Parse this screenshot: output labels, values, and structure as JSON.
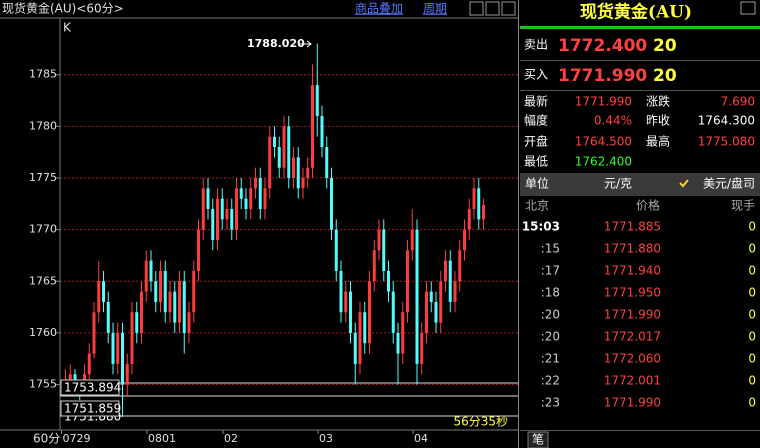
{
  "toolbar": {
    "title": "现货黄金(AU)<60分>",
    "overlay": "商品叠加",
    "period": "周期"
  },
  "chart_data": {
    "type": "candlestick",
    "corner_label": "K",
    "period_label": "60分",
    "countdown": "56分35秒",
    "max_label": "1788.020",
    "low_labels": [
      "1753.894",
      "1751.859"
    ],
    "low_label_hidden": "1751.880",
    "up_color": "#ff3c3c",
    "down_color": "#54fcfc",
    "grid": true,
    "ylim": [
      1750.6,
      1790.3
    ],
    "yticks": [
      1755,
      1760,
      1765,
      1770,
      1775,
      1780,
      1785
    ],
    "categories": [
      "0729",
      null,
      null,
      null,
      null,
      null,
      null,
      null,
      null,
      null,
      null,
      null,
      null,
      null,
      null,
      null,
      null,
      null,
      "0801",
      null,
      null,
      null,
      null,
      null,
      null,
      null,
      null,
      null,
      null,
      null,
      null,
      null,
      null,
      null,
      "02",
      null,
      null,
      null,
      null,
      null,
      null,
      null,
      null,
      null,
      null,
      null,
      null,
      null,
      null,
      null,
      null,
      null,
      null,
      null,
      "03",
      null,
      null,
      null,
      null,
      null,
      null,
      null,
      null,
      null,
      null,
      null,
      null,
      null,
      null,
      null,
      null,
      null,
      null,
      null,
      "04",
      null,
      null,
      null,
      null,
      null,
      null,
      null,
      null,
      null,
      null,
      null,
      null,
      null,
      null
    ],
    "candles": [
      [
        1755,
        1756.5,
        1754,
        1755.5
      ],
      [
        1755.5,
        1757,
        1755,
        1756
      ],
      [
        1756,
        1756.5,
        1754.5,
        1755
      ],
      [
        1755,
        1755.5,
        1753.5,
        1754.5
      ],
      [
        1754.5,
        1757,
        1754,
        1756
      ],
      [
        1756,
        1759,
        1755.5,
        1758
      ],
      [
        1758,
        1763,
        1757.5,
        1762
      ],
      [
        1762,
        1767,
        1761,
        1765
      ],
      [
        1765,
        1766,
        1762,
        1763
      ],
      [
        1763,
        1764,
        1759,
        1760
      ],
      [
        1760,
        1761,
        1756,
        1757
      ],
      [
        1757,
        1761,
        1756,
        1760
      ],
      [
        1760,
        1761,
        1751.859,
        1755
      ],
      [
        1755,
        1758,
        1753.894,
        1757
      ],
      [
        1757,
        1763,
        1756,
        1762
      ],
      [
        1762,
        1763,
        1759,
        1760
      ],
      [
        1760,
        1765,
        1759,
        1764
      ],
      [
        1764,
        1768,
        1763,
        1767
      ],
      [
        1767,
        1768,
        1764,
        1765
      ],
      [
        1765,
        1766,
        1762,
        1763
      ],
      [
        1763,
        1767,
        1762,
        1766
      ],
      [
        1766,
        1767,
        1761,
        1762
      ],
      [
        1762,
        1765,
        1761,
        1764
      ],
      [
        1764,
        1765,
        1760,
        1761
      ],
      [
        1761,
        1766,
        1760,
        1765
      ],
      [
        1765,
        1766,
        1758,
        1760
      ],
      [
        1760,
        1763,
        1759,
        1762
      ],
      [
        1762,
        1767,
        1761,
        1766
      ],
      [
        1766,
        1771,
        1765,
        1770
      ],
      [
        1770,
        1775,
        1769,
        1774
      ],
      [
        1774,
        1775,
        1771,
        1772
      ],
      [
        1772,
        1773,
        1768,
        1769
      ],
      [
        1769,
        1774,
        1768,
        1773
      ],
      [
        1773,
        1774,
        1770,
        1771
      ],
      [
        1771,
        1773,
        1770,
        1772
      ],
      [
        1772,
        1773,
        1769,
        1770
      ],
      [
        1770,
        1775,
        1769,
        1774
      ],
      [
        1774,
        1775,
        1772,
        1773
      ],
      [
        1773,
        1774,
        1771,
        1772
      ],
      [
        1772,
        1775,
        1771,
        1774
      ],
      [
        1774,
        1776,
        1773,
        1775
      ],
      [
        1775,
        1776,
        1771,
        1772
      ],
      [
        1772,
        1775,
        1771,
        1774
      ],
      [
        1774,
        1780,
        1773,
        1779
      ],
      [
        1779,
        1780,
        1777,
        1778
      ],
      [
        1778,
        1779,
        1775,
        1776
      ],
      [
        1776,
        1781,
        1775,
        1780
      ],
      [
        1780,
        1781,
        1774,
        1775
      ],
      [
        1775,
        1778,
        1774,
        1777
      ],
      [
        1777,
        1778,
        1773,
        1774
      ],
      [
        1774,
        1776,
        1773,
        1775
      ],
      [
        1775,
        1777,
        1774,
        1776
      ],
      [
        1776,
        1786,
        1775,
        1784
      ],
      [
        1784,
        1788.02,
        1779,
        1781
      ],
      [
        1781,
        1782,
        1777,
        1778
      ],
      [
        1778,
        1779,
        1774,
        1775
      ],
      [
        1775,
        1776,
        1769,
        1770
      ],
      [
        1770,
        1771,
        1765,
        1766
      ],
      [
        1766,
        1767,
        1761,
        1762
      ],
      [
        1762,
        1765,
        1761,
        1764
      ],
      [
        1764,
        1765,
        1759,
        1760
      ],
      [
        1760,
        1761,
        1755,
        1757
      ],
      [
        1757,
        1763,
        1756,
        1762
      ],
      [
        1762,
        1763,
        1758,
        1759
      ],
      [
        1759,
        1766,
        1758,
        1765
      ],
      [
        1765,
        1769,
        1764,
        1768
      ],
      [
        1768,
        1771,
        1767,
        1770
      ],
      [
        1770,
        1771,
        1765,
        1766
      ],
      [
        1766,
        1767,
        1763,
        1764
      ],
      [
        1764,
        1765,
        1759,
        1760
      ],
      [
        1760,
        1761,
        1755,
        1758
      ],
      [
        1758,
        1763,
        1757,
        1762
      ],
      [
        1762,
        1769,
        1761,
        1768
      ],
      [
        1768,
        1772,
        1767,
        1770
      ],
      [
        1770,
        1771,
        1755,
        1757
      ],
      [
        1757,
        1761,
        1756,
        1760
      ],
      [
        1760,
        1765,
        1759,
        1764
      ],
      [
        1764,
        1765,
        1762,
        1763
      ],
      [
        1763,
        1764,
        1760,
        1761
      ],
      [
        1761,
        1766,
        1760,
        1765
      ],
      [
        1765,
        1768,
        1764,
        1767
      ],
      [
        1767,
        1768,
        1762,
        1763
      ],
      [
        1763,
        1766,
        1762,
        1765
      ],
      [
        1765,
        1769,
        1764,
        1768
      ],
      [
        1768,
        1771,
        1767,
        1770
      ],
      [
        1770,
        1773,
        1769,
        1772
      ],
      [
        1772,
        1775,
        1771,
        1774
      ],
      [
        1774,
        1775,
        1770,
        1771
      ],
      [
        1771,
        1773,
        1770,
        1772.4
      ]
    ]
  },
  "panel": {
    "title": "现货黄金(AU)",
    "sell": {
      "label": "卖出",
      "price": "1772.400",
      "qty": "20"
    },
    "buy": {
      "label": "买入",
      "price": "1771.990",
      "qty": "20"
    },
    "stats": [
      [
        "最新",
        "1771.990",
        "涨跌",
        "7.690"
      ],
      [
        "幅度",
        "0.44%",
        "昨收",
        "1764.300"
      ],
      [
        "开盘",
        "1764.500",
        "最高",
        "1775.080"
      ],
      [
        "最低",
        "1762.400"
      ]
    ],
    "unit": {
      "label": "单位",
      "value": "元/克",
      "option": "美元/盘司"
    },
    "header": [
      "北京",
      "价格",
      "现手"
    ],
    "ticks": [
      [
        "15:03",
        "1771.885",
        "0"
      ],
      [
        ":15",
        "1771.880",
        "0"
      ],
      [
        ":17",
        "1771.940",
        "0"
      ],
      [
        ":18",
        "1771.950",
        "0"
      ],
      [
        ":20",
        "1771.990",
        "0"
      ],
      [
        ":20",
        "1772.017",
        "0"
      ],
      [
        ":21",
        "1772.060",
        "0"
      ],
      [
        ":22",
        "1772.001",
        "0"
      ],
      [
        ":23",
        "1771.990",
        "0"
      ]
    ],
    "tab": "笔"
  }
}
